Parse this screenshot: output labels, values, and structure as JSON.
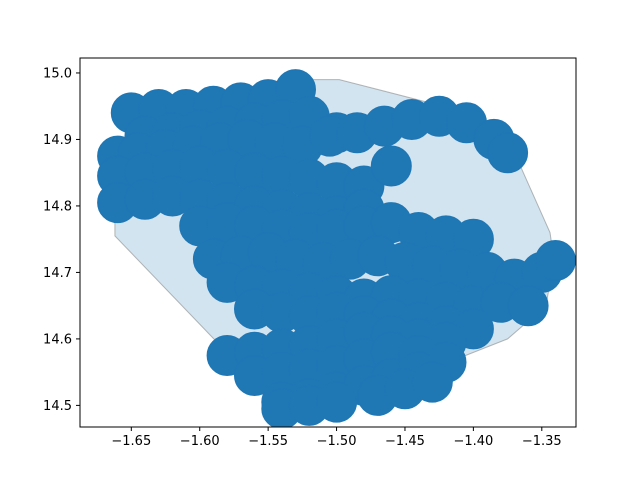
{
  "chart_data": {
    "type": "scatter",
    "title": "",
    "xlabel": "",
    "ylabel": "",
    "xlim": [
      -1.6875,
      -1.325
    ],
    "ylim": [
      14.4675,
      15.0225
    ],
    "xticks": [
      -1.65,
      -1.6,
      -1.55,
      -1.5,
      -1.45,
      -1.4,
      -1.35
    ],
    "xtick_labels": [
      "−1.65",
      "−1.60",
      "−1.55",
      "−1.50",
      "−1.45",
      "−1.40",
      "−1.35"
    ],
    "yticks": [
      14.5,
      14.6,
      14.7,
      14.8,
      14.9,
      15.0
    ],
    "ytick_labels": [
      "14.5",
      "14.6",
      "14.7",
      "14.8",
      "14.9",
      "15.0"
    ],
    "grid": false,
    "legend": false,
    "colors": {
      "points": "#1f77b4",
      "hull_fill": "#1f77b4",
      "hull_edge": "#7f7f7f"
    },
    "hull": {
      "x": [
        -1.662,
        -1.649,
        -1.642,
        -1.538,
        -1.498,
        -1.413,
        -1.397,
        -1.37,
        -1.344,
        -1.341,
        -1.347,
        -1.375,
        -1.455,
        -1.497,
        -1.54,
        -1.578,
        -1.662
      ],
      "y": [
        14.875,
        14.905,
        14.945,
        14.99,
        14.99,
        14.945,
        14.94,
        14.88,
        14.76,
        14.718,
        14.65,
        14.6,
        14.535,
        14.505,
        14.495,
        14.575,
        14.755
      ]
    },
    "series": [
      {
        "x": [
          -1.65,
          -1.63,
          -1.61,
          -1.59,
          -1.57,
          -1.55,
          -1.53,
          -1.64,
          -1.62,
          -1.6,
          -1.58,
          -1.56,
          -1.54,
          -1.52,
          -1.5,
          -1.66,
          -1.645,
          -1.625,
          -1.605,
          -1.585,
          -1.565,
          -1.545,
          -1.525,
          -1.505,
          -1.485,
          -1.465,
          -1.445,
          -1.425,
          -1.405,
          -1.385,
          -1.375,
          -1.66,
          -1.64,
          -1.62,
          -1.6,
          -1.58,
          -1.56,
          -1.54,
          -1.52,
          -1.5,
          -1.48,
          -1.46,
          -1.66,
          -1.64,
          -1.62,
          -1.6,
          -1.58,
          -1.56,
          -1.54,
          -1.52,
          -1.5,
          -1.48,
          -1.6,
          -1.58,
          -1.56,
          -1.54,
          -1.52,
          -1.5,
          -1.48,
          -1.46,
          -1.44,
          -1.42,
          -1.4,
          -1.59,
          -1.57,
          -1.55,
          -1.53,
          -1.51,
          -1.49,
          -1.47,
          -1.45,
          -1.43,
          -1.41,
          -1.39,
          -1.37,
          -1.35,
          -1.34,
          -1.58,
          -1.56,
          -1.54,
          -1.52,
          -1.5,
          -1.48,
          -1.46,
          -1.44,
          -1.42,
          -1.4,
          -1.38,
          -1.36,
          -1.56,
          -1.54,
          -1.52,
          -1.5,
          -1.48,
          -1.46,
          -1.44,
          -1.42,
          -1.4,
          -1.58,
          -1.56,
          -1.54,
          -1.52,
          -1.5,
          -1.48,
          -1.46,
          -1.44,
          -1.42,
          -1.56,
          -1.54,
          -1.52,
          -1.5,
          -1.48,
          -1.46,
          -1.44,
          -1.42,
          -1.54,
          -1.52,
          -1.5,
          -1.48,
          -1.46,
          -1.44,
          -1.54,
          -1.52,
          -1.5,
          -1.47,
          -1.45,
          -1.43
        ],
        "y": [
          14.94,
          14.945,
          14.945,
          14.95,
          14.955,
          14.96,
          14.975,
          14.905,
          14.91,
          14.915,
          14.92,
          14.925,
          14.93,
          14.935,
          14.91,
          14.875,
          14.88,
          14.885,
          14.89,
          14.895,
          14.9,
          14.895,
          14.89,
          14.905,
          14.91,
          14.92,
          14.93,
          14.935,
          14.925,
          14.9,
          14.88,
          14.845,
          14.85,
          14.855,
          14.86,
          14.855,
          14.85,
          14.845,
          14.84,
          14.835,
          14.83,
          14.86,
          14.805,
          14.81,
          14.815,
          14.81,
          14.805,
          14.8,
          14.795,
          14.79,
          14.785,
          14.795,
          14.77,
          14.775,
          14.77,
          14.765,
          14.76,
          14.765,
          14.77,
          14.775,
          14.76,
          14.755,
          14.75,
          14.72,
          14.725,
          14.73,
          14.72,
          14.715,
          14.72,
          14.725,
          14.715,
          14.71,
          14.705,
          14.7,
          14.69,
          14.7,
          14.718,
          14.685,
          14.68,
          14.675,
          14.67,
          14.665,
          14.66,
          14.665,
          14.66,
          14.655,
          14.65,
          14.655,
          14.65,
          14.645,
          14.64,
          14.635,
          14.64,
          14.635,
          14.63,
          14.625,
          14.62,
          14.615,
          14.575,
          14.58,
          14.585,
          14.59,
          14.6,
          14.61,
          14.605,
          14.6,
          14.595,
          14.545,
          14.55,
          14.555,
          14.56,
          14.57,
          14.58,
          14.575,
          14.565,
          14.505,
          14.51,
          14.52,
          14.53,
          14.54,
          14.55,
          14.495,
          14.5,
          14.505,
          14.515,
          14.525,
          14.535
        ]
      }
    ]
  }
}
